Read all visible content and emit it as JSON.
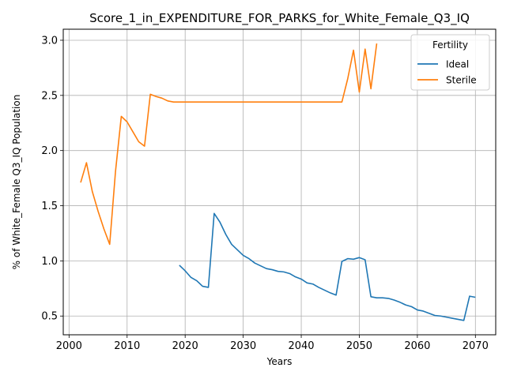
{
  "chart_data": {
    "type": "line",
    "title": "Score_1_in_EXPENDITURE_FOR_PARKS_for_White_Female_Q3_IQ",
    "xlabel": "Years",
    "ylabel": "% of White_Female Q3_IQ Population",
    "xlim": [
      1999,
      2073.5
    ],
    "ylim": [
      0.33,
      3.1
    ],
    "xticks": [
      2000,
      2010,
      2020,
      2030,
      2040,
      2050,
      2060,
      2070
    ],
    "yticks": [
      0.5,
      1.0,
      1.5,
      2.0,
      2.5,
      3.0
    ],
    "xtick_labels": [
      "2000",
      "2010",
      "2020",
      "2030",
      "2040",
      "2050",
      "2060",
      "2070"
    ],
    "ytick_labels": [
      "0.5",
      "1.0",
      "1.5",
      "2.0",
      "2.5",
      "3.0"
    ],
    "grid": true,
    "legend": {
      "title": "Fertility",
      "position": "top-right"
    },
    "series": [
      {
        "name": "Ideal",
        "color": "#1f77b4",
        "x": [
          2019,
          2020,
          2021,
          2022,
          2023,
          2024,
          2025,
          2026,
          2027,
          2028,
          2029,
          2030,
          2031,
          2032,
          2033,
          2034,
          2035,
          2036,
          2037,
          2038,
          2039,
          2040,
          2041,
          2042,
          2043,
          2044,
          2045,
          2046,
          2047,
          2048,
          2049,
          2050,
          2051,
          2052,
          2053,
          2054,
          2055,
          2056,
          2057,
          2058,
          2059,
          2060,
          2061,
          2062,
          2063,
          2064,
          2065,
          2066,
          2067,
          2068,
          2069,
          2070
        ],
        "y": [
          0.96,
          0.91,
          0.85,
          0.82,
          0.77,
          0.76,
          1.43,
          1.35,
          1.24,
          1.15,
          1.1,
          1.05,
          1.02,
          0.98,
          0.955,
          0.93,
          0.92,
          0.905,
          0.9,
          0.885,
          0.855,
          0.835,
          0.8,
          0.79,
          0.76,
          0.735,
          0.71,
          0.69,
          0.995,
          1.02,
          1.015,
          1.03,
          1.01,
          0.675,
          0.665,
          0.665,
          0.66,
          0.645,
          0.625,
          0.6,
          0.585,
          0.555,
          0.545,
          0.525,
          0.505,
          0.5,
          0.49,
          0.48,
          0.47,
          0.46,
          0.68,
          0.67
        ]
      },
      {
        "name": "Sterile",
        "color": "#ff7f0e",
        "x": [
          2002,
          2003,
          2004,
          2005,
          2006,
          2007,
          2008,
          2009,
          2010,
          2011,
          2012,
          2013,
          2014,
          2015,
          2016,
          2017,
          2018,
          2019,
          2020,
          2025,
          2030,
          2035,
          2040,
          2045,
          2047,
          2048,
          2049,
          2050,
          2051,
          2052,
          2053
        ],
        "y": [
          1.71,
          1.89,
          1.63,
          1.45,
          1.29,
          1.15,
          1.81,
          2.31,
          2.26,
          2.17,
          2.08,
          2.04,
          2.51,
          2.49,
          2.475,
          2.45,
          2.44,
          2.44,
          2.44,
          2.44,
          2.44,
          2.44,
          2.44,
          2.44,
          2.44,
          2.65,
          2.91,
          2.53,
          2.92,
          2.56,
          2.97
        ]
      }
    ]
  }
}
